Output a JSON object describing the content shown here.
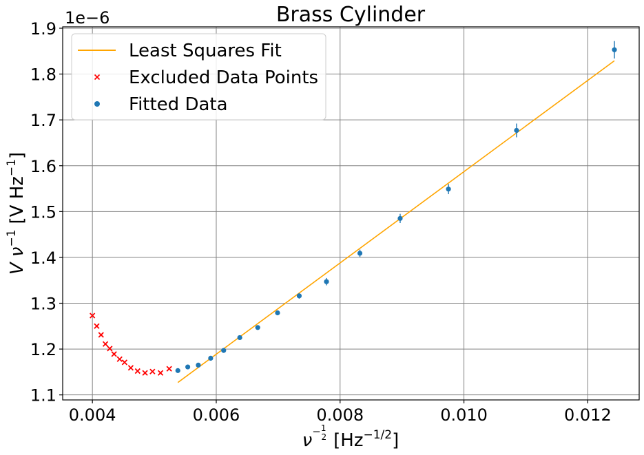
{
  "colors": {
    "fit": "#FFA500",
    "excluded": "#FF0000",
    "fitted": "#1F77B4",
    "grid": "#808080"
  },
  "chart_data": {
    "type": "scatter",
    "title": "Brass Cylinder",
    "xlabel_main": "ν",
    "xlabel_exp_num": "1",
    "xlabel_exp_den": "2",
    "xlabel_unit": "[Hz",
    "xlabel_unit_exp": "−1/2",
    "xlabel_unit_close": "]",
    "ylabel_main": "V ν",
    "ylabel_exp": "−1",
    "ylabel_unit": "[V Hz",
    "ylabel_unit_exp": "−1",
    "ylabel_unit_close": "]",
    "y_offset_label": "1e−6",
    "xlim": [
      0.00352,
      0.01283
    ],
    "ylim": [
      1.089,
      1.903
    ],
    "x_ticks": [
      0.004,
      0.006,
      0.008,
      0.01,
      0.012
    ],
    "x_tick_labels": [
      "0.004",
      "0.006",
      "0.008",
      "0.010",
      "0.012"
    ],
    "y_ticks": [
      1.1,
      1.2,
      1.3,
      1.4,
      1.5,
      1.6,
      1.7,
      1.8,
      1.9
    ],
    "y_tick_labels": [
      "1.1",
      "1.2",
      "1.3",
      "1.4",
      "1.5",
      "1.6",
      "1.7",
      "1.8",
      "1.9"
    ],
    "grid": true,
    "legend_position": "upper-left",
    "legend": [
      "Least Squares Fit",
      "Excluded Data Points",
      "Fitted Data"
    ],
    "series": [
      {
        "name": "Least Squares Fit",
        "kind": "line",
        "x": [
          0.00538,
          0.01243
        ],
        "y": [
          1.127,
          1.829
        ]
      },
      {
        "name": "Excluded Data Points",
        "kind": "x-marker",
        "x": [
          0.004,
          0.00407,
          0.00414,
          0.00421,
          0.00428,
          0.00435,
          0.00444,
          0.00452,
          0.00462,
          0.00473,
          0.00485,
          0.00497,
          0.0051,
          0.00524
        ],
        "y": [
          1.273,
          1.25,
          1.231,
          1.211,
          1.201,
          1.189,
          1.178,
          1.171,
          1.159,
          1.152,
          1.148,
          1.151,
          1.148,
          1.157
        ]
      },
      {
        "name": "Fitted Data",
        "kind": "errorbar",
        "x": [
          0.00538,
          0.00554,
          0.00571,
          0.00591,
          0.00612,
          0.00638,
          0.00667,
          0.00699,
          0.00734,
          0.00778,
          0.00832,
          0.00897,
          0.00975,
          0.01085,
          0.01243
        ],
        "y": [
          1.153,
          1.161,
          1.165,
          1.18,
          1.197,
          1.225,
          1.247,
          1.279,
          1.316,
          1.347,
          1.409,
          1.485,
          1.549,
          1.677,
          1.853
        ],
        "yerr": [
          0.004,
          0.004,
          0.005,
          0.005,
          0.005,
          0.005,
          0.005,
          0.005,
          0.006,
          0.008,
          0.008,
          0.01,
          0.011,
          0.015,
          0.019
        ]
      }
    ]
  }
}
